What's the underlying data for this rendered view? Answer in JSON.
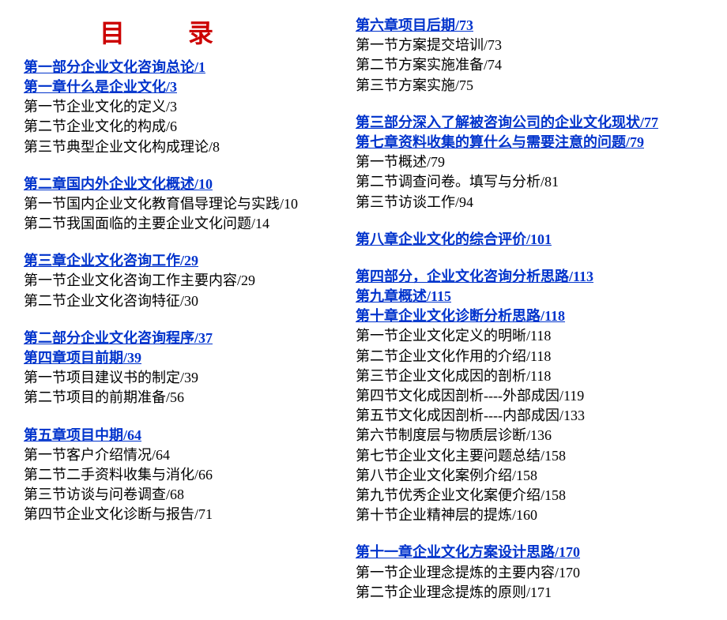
{
  "title": "目　录",
  "colors": {
    "title_color": "#cc0000",
    "heading_color": "#0033cc",
    "text_color": "#000000",
    "background": "#ffffff"
  },
  "fonts": {
    "title_size": 32,
    "body_size": 18
  },
  "left_column": {
    "groups": [
      {
        "headings": [
          "第一部分企业文化咨询总论/1",
          "第一章什么是企业文化/3"
        ],
        "entries": [
          "第一节企业文化的定义/3",
          "第二节企业文化的构成/6",
          "第三节典型企业文化构成理论/8"
        ]
      },
      {
        "headings": [
          "第二章国内外企业文化概述/10"
        ],
        "entries": [
          "第一节国内企业文化教育倡导理论与实践/10",
          "第二节我国面临的主要企业文化问题/14"
        ]
      },
      {
        "headings": [
          "第三章企业文化咨询工作/29"
        ],
        "entries": [
          "第一节企业文化咨询工作主要内容/29",
          "第二节企业文化咨询特征/30"
        ]
      },
      {
        "headings": [
          "第二部分企业文化咨询程序/37",
          "第四章项目前期/39"
        ],
        "entries": [
          "第一节项目建议书的制定/39",
          "第二节项目的前期准备/56"
        ]
      },
      {
        "headings": [
          "第五章项目中期/64"
        ],
        "entries": [
          "第一节客户介绍情况/64",
          "第二节二手资料收集与消化/66",
          "第三节访谈与问卷调查/68",
          "第四节企业文化诊断与报告/71"
        ]
      }
    ]
  },
  "right_column": {
    "groups": [
      {
        "headings": [
          "第六章项目后期/73"
        ],
        "entries": [
          "第一节方案提交培训/73",
          "第二节方案实施准备/74",
          "第三节方案实施/75"
        ]
      },
      {
        "headings": [
          "第三部分深入了解被咨询公司的企业文化现状/77",
          "第七章资料收集的算什么与需要注意的问题/79"
        ],
        "entries": [
          "第一节概述/79",
          "第二节调查问卷。填写与分析/81",
          "第三节访谈工作/94"
        ]
      },
      {
        "headings": [
          "第八章企业文化的综合评价/101"
        ],
        "entries": []
      },
      {
        "headings": [
          "第四部分，企业文化咨询分析思路/113",
          "第九章概述/115",
          "第十章企业文化诊断分析思路/118"
        ],
        "entries": [
          "第一节企业文化定义的明晰/118",
          "第二节企业文化作用的介绍/118",
          "第三节企业文化成因的剖析/118",
          "第四节文化成因剖析----外部成因/119",
          "第五节文化成因剖析----内部成因/133",
          "第六节制度层与物质层诊断/136",
          "第七节企业文化主要问题总结/158",
          "第八节企业文化案例介绍/158",
          "第九节优秀企业文化案便介绍/158",
          "第十节企业精神层的提炼/160"
        ]
      },
      {
        "headings": [
          "第十一章企业文化方案设计思路/170"
        ],
        "entries": [
          "第一节企业理念提炼的主要内容/170",
          "第二节企业理念提炼的原则/171"
        ]
      }
    ]
  }
}
